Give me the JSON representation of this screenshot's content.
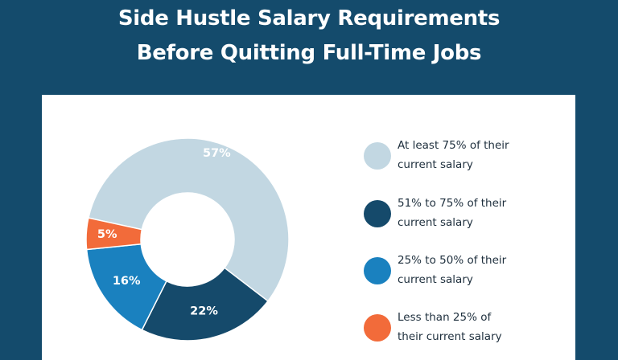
{
  "header": {
    "title_line1": "Side Hustle Salary Requirements",
    "title_line2": "Before Quitting Full-Time Jobs"
  },
  "chart_data": {
    "type": "pie",
    "donut": true,
    "categories": [
      "At least 75% of their current salary",
      "51% to 75% of their current salary",
      "25% to 50% of their current salary",
      "Less than 25% of their current salary"
    ],
    "values": [
      57,
      22,
      16,
      5
    ],
    "labels": [
      "57%",
      "22%",
      "16%",
      "5%"
    ],
    "colors": [
      "#c2d7e2",
      "#154a6b",
      "#1a81bf",
      "#f26b3a"
    ],
    "legend_position": "right"
  },
  "legend": [
    {
      "line1": "At least 75% of their",
      "line2": "current salary",
      "color": "#c2d7e2"
    },
    {
      "line1": "51% to 75% of their",
      "line2": "current salary",
      "color": "#154a6b"
    },
    {
      "line1": "25% to 50% of their",
      "line2": "current salary",
      "color": "#1a81bf"
    },
    {
      "line1": "Less than 25% of",
      "line2": "their current salary",
      "color": "#f26b3a"
    }
  ]
}
